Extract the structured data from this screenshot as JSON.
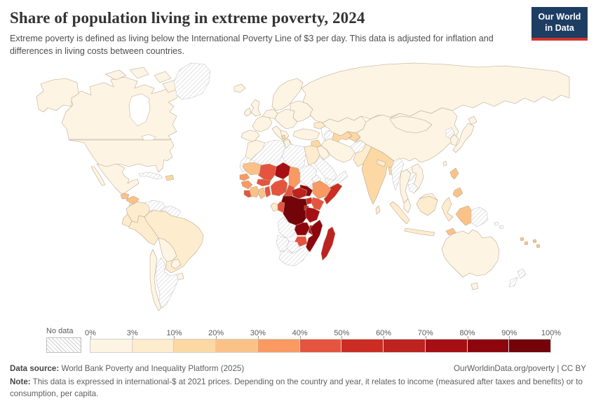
{
  "header": {
    "title": "Share of population living in extreme poverty, 2024",
    "subtitle": "Extreme poverty is defined as living below the International Poverty Line of $3 per day. This data is adjusted for inflation and differences in living costs between countries.",
    "logo": {
      "line1": "Our World",
      "line2": "in Data",
      "bg_color": "#1d3d63",
      "accent_color": "#d0342c"
    }
  },
  "legend": {
    "no_data_label": "No data",
    "tick_labels": [
      "0%",
      "3%",
      "10%",
      "20%",
      "30%",
      "40%",
      "50%",
      "60%",
      "70%",
      "80%",
      "90%",
      "100%"
    ]
  },
  "chart_data": {
    "type": "choropleth",
    "title": "Share of population living in extreme poverty, 2024",
    "unit": "% of population below International Poverty Line of $3 per day",
    "year": "2024",
    "legend_position": "bottom",
    "bins": [
      {
        "label": "0%–3%",
        "color": "#fdf4e3"
      },
      {
        "label": "3%–10%",
        "color": "#fdeccd"
      },
      {
        "label": "10%–20%",
        "color": "#fcd8a4"
      },
      {
        "label": "20%–30%",
        "color": "#fbc288"
      },
      {
        "label": "30%–40%",
        "color": "#f99a62"
      },
      {
        "label": "40%–50%",
        "color": "#e5543e"
      },
      {
        "label": "50%–60%",
        "color": "#cb2d24"
      },
      {
        "label": "60%–70%",
        "color": "#bd231f"
      },
      {
        "label": "70%–80%",
        "color": "#a60f14"
      },
      {
        "label": "80%–90%",
        "color": "#8e060d"
      },
      {
        "label": "90%–100%",
        "color": "#73040a"
      }
    ],
    "no_data_key": "nd",
    "country_bins": {
      "canada": 0,
      "alaska": 0,
      "arctic-islands": 0,
      "usa": 0,
      "mexico": 0,
      "baja": 0,
      "guatemala": 3,
      "honduras-nicaragua": 3,
      "costa-rica-panama": 0,
      "cuba": "nd",
      "hispaniola": 2,
      "greenland": "nd",
      "colombia": 1,
      "venezuela": "nd",
      "guyana-suriname": "nd",
      "ecuador": 1,
      "peru": 1,
      "brazil": 1,
      "bolivia": 0,
      "paraguay": 0,
      "uruguay": 0,
      "chile": 0,
      "argentina": "nd",
      "iceland": 0,
      "uk": 0,
      "ireland": 0,
      "scandinavia": 0,
      "france": 0,
      "germany": 0,
      "iberia": 0,
      "italy": 0,
      "central-europe": 0,
      "balkans": 0,
      "greece": 0,
      "albania": 2,
      "ukraine-baltics": 0,
      "russia": 0,
      "caucasus": 1,
      "kazakhstan": 0,
      "turkmenistan": "nd",
      "uzbekistan": 2,
      "tajik-kyrgyz": 2,
      "turkey": 0,
      "syria": 2,
      "iraq": 0,
      "iran": 0,
      "israel-jordan": 0,
      "saudi-arabia": "nd",
      "yemen-oman": "nd",
      "afghanistan": "nd",
      "pakistan": 1,
      "india": 2,
      "nepal": 1,
      "bangladesh": 2,
      "sri-lanka": 1,
      "myanmar": "nd",
      "china": 0,
      "mongolia": 0,
      "north-korea": "nd",
      "south-korea": 0,
      "japan": 0,
      "hokkaido": 0,
      "taiwan": 0,
      "thailand": 0,
      "laos": "nd",
      "vietnam": 0,
      "cambodia": "nd",
      "malay-peninsula": 0,
      "sumatra": 1,
      "java": 1,
      "borneo-indonesia": 1,
      "borneo-malaysia": 0,
      "sulawesi": 1,
      "philippines-luzon": 3,
      "philippines-mindanao": 3,
      "west-papua": 3,
      "png": "nd",
      "timor": 3,
      "solomon": "nd",
      "vanuatu": 3,
      "fiji": 3,
      "australia": 0,
      "tasmania": 0,
      "nz-north": "nd",
      "nz-south": "nd",
      "morocco": 0,
      "western-sahara": "nd",
      "algeria": "nd",
      "tunisia": 0,
      "libya": "nd",
      "egypt": 1,
      "mauritania": 3,
      "mali": 5,
      "niger": 8,
      "chad": 4,
      "senegal": 4,
      "guinea": 4,
      "sierra-leone-liberia": 5,
      "cote-divoire": 3,
      "ghana": 3,
      "togo-benin": 5,
      "burkina-faso": 5,
      "nigeria": 5,
      "cameroon": 5,
      "car": 7,
      "south-sudan": 9,
      "sudan": "nd",
      "eritrea": "nd",
      "ethiopia": 4,
      "somalia": 6,
      "uganda": 6,
      "kenya": 5,
      "rwanda-burundi": 7,
      "drc": 10,
      "congo": 5,
      "gabon": 1,
      "tanzania": 8,
      "angola": "nd",
      "zambia": 9,
      "malawi": 8,
      "mozambique": 9,
      "zimbabwe": 5,
      "botswana": "nd",
      "namibia": "nd",
      "south-africa": "nd",
      "madagascar": 7
    }
  },
  "footer": {
    "datasource_label": "Data source:",
    "datasource_text": " World Bank Poverty and Inequality Platform (2025)",
    "link_text": "OurWorldinData.org/poverty | CC BY",
    "note_label": "Note:",
    "note_text": " This data is expressed in international-$ at 2021 prices. Depending on the country and year, it relates to income (measured after taxes and benefits) or to consumption, per capita."
  }
}
